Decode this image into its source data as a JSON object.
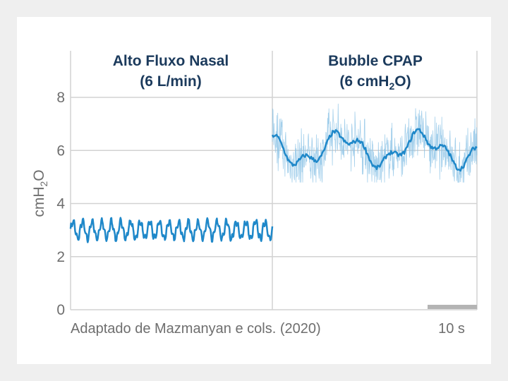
{
  "chart_data": {
    "type": "line",
    "ylabel": "cmH",
    "ylabel_sub": "2",
    "ylabel_end": "O",
    "ylim": [
      0,
      8
    ],
    "yticks": [
      0,
      2,
      4,
      6,
      8
    ],
    "grid": true,
    "panels": [
      {
        "title_line1": "Alto Fluxo Nasal",
        "title_line2": "(6 L/min)",
        "mean": 3.0,
        "amplitude": 0.32,
        "cycles": 21
      },
      {
        "title_line1": "Bubble CPAP",
        "title_line2_pre": "(6 cmH",
        "title_line2_sub": "2",
        "title_line2_post": "O)",
        "mean": 6.05,
        "range": [
          4.8,
          8.0
        ],
        "noisy": true
      }
    ],
    "scale_bar_label": "10 s"
  },
  "source": "Adaptado de Mazmanyan e cols. (2020)",
  "colors": {
    "trace": "#1f88c9",
    "trace_light": "#8cc3e6",
    "grid": "#d2d2d2",
    "title": "#1b3a5c",
    "text": "#6e6e6e",
    "scale_bar": "#b4b4b4"
  }
}
